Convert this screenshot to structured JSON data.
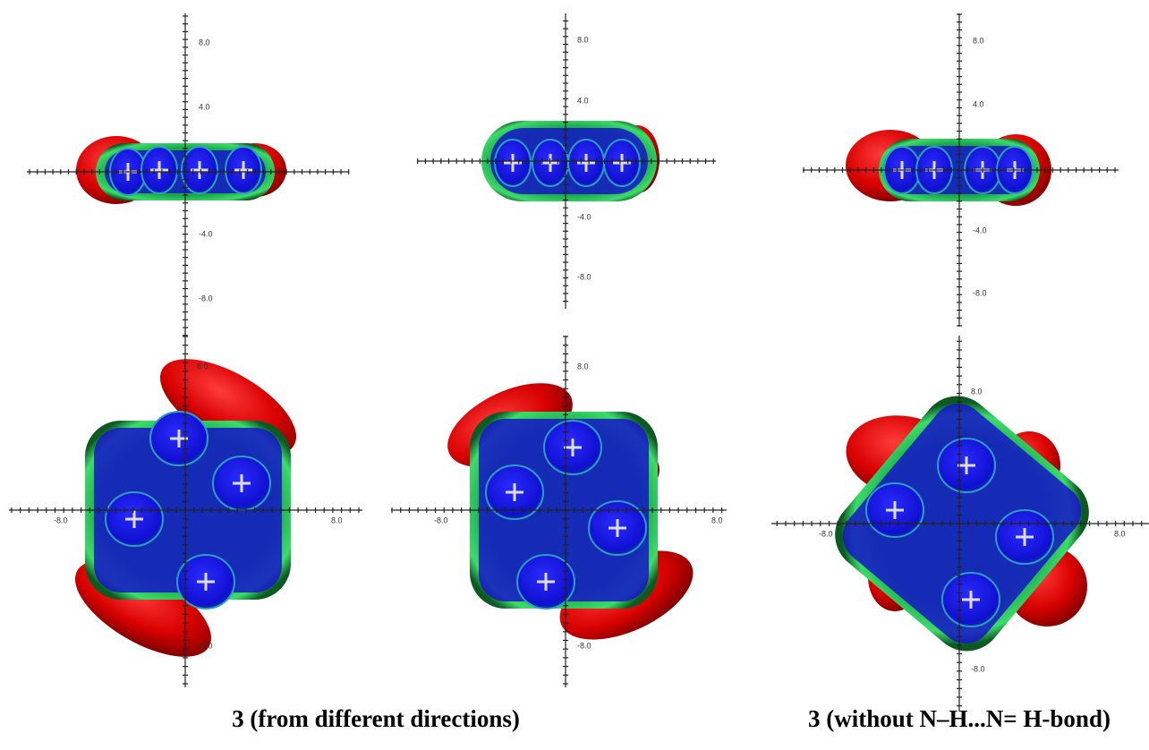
{
  "panels": [
    {
      "tick_labels": [
        "8.0",
        "4.0",
        "-4.0",
        "-8.0"
      ]
    },
    {
      "tick_labels": [
        "8.0",
        "4.0",
        "-4.0",
        "-8.0"
      ]
    },
    {
      "tick_labels": [
        "8.0",
        "4.0",
        "-4.0",
        "-8.0"
      ]
    },
    {
      "tick_labels": [
        "8.0",
        "-8.0",
        "8.0",
        "-8.0"
      ]
    },
    {
      "tick_labels": [
        "8.0",
        "-8.0",
        "8.0",
        "-8.0"
      ]
    },
    {
      "tick_labels": [
        "8.0",
        "-8.0",
        "8.0",
        "-8.0"
      ]
    }
  ],
  "captions": [
    "3 (from different directions)",
    "3 (without N–H...N= H-bond)"
  ]
}
